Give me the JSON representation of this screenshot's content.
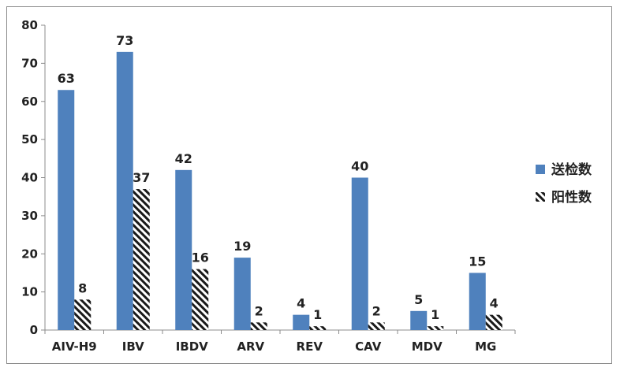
{
  "chart_data": {
    "type": "bar",
    "categories": [
      "AIV-H9",
      "IBV",
      "IBDV",
      "ARV",
      "REV",
      "CAV",
      "MDV",
      "MG"
    ],
    "series": [
      {
        "name": "送检数",
        "values": [
          63,
          73,
          42,
          19,
          4,
          40,
          5,
          15
        ],
        "color": "#4f81bd",
        "pattern": "solid"
      },
      {
        "name": "阳性数",
        "values": [
          8,
          37,
          16,
          2,
          1,
          2,
          1,
          4
        ],
        "color": "#1a1a1a",
        "pattern": "diagonal-hatch"
      }
    ],
    "title": "",
    "xlabel": "",
    "ylabel": "",
    "ylim": [
      0,
      80
    ],
    "yticks": [
      0,
      10,
      20,
      30,
      40,
      50,
      60,
      70,
      80
    ],
    "grid": false,
    "legend_position": "right"
  }
}
